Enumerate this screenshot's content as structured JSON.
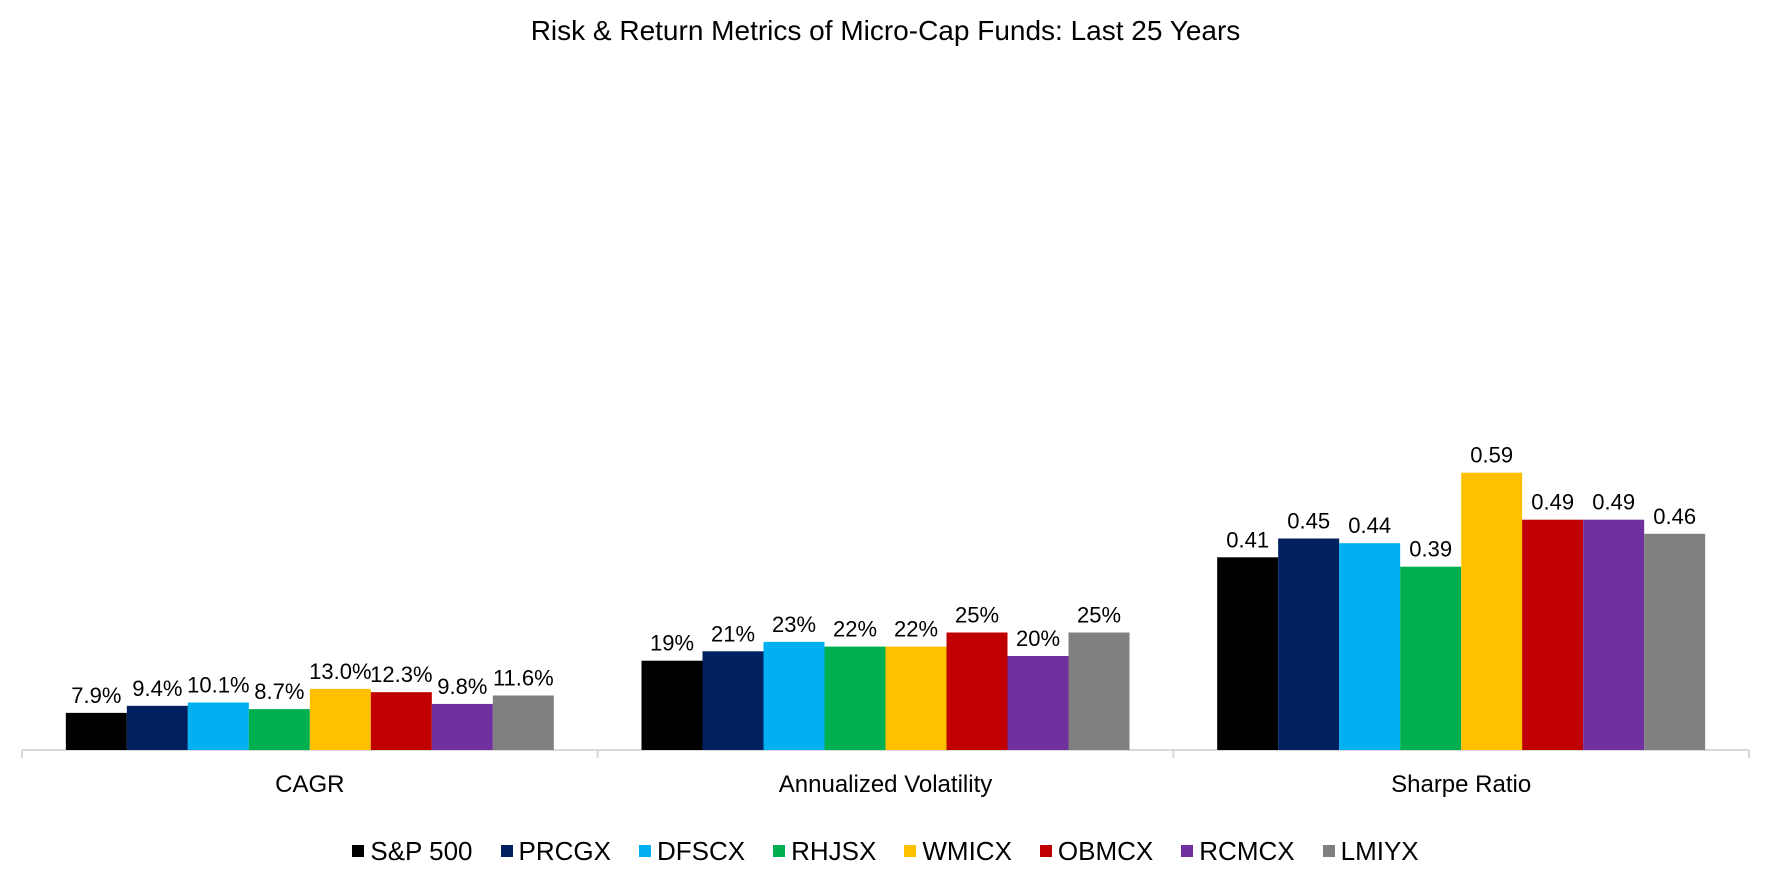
{
  "chart_data": {
    "type": "bar",
    "title": "Risk & Return Metrics of Micro-Cap Funds: Last 25 Years",
    "categories": [
      "CAGR",
      "Annualized Volatility",
      "Sharpe Ratio"
    ],
    "ylim": [
      0,
      0.8
    ],
    "grid": false,
    "legend_position": "bottom",
    "series": [
      {
        "name": "S&P 500",
        "color": "#000000",
        "values": [
          0.079,
          0.19,
          0.41
        ],
        "labels": [
          "7.9%",
          "19%",
          "0.41"
        ]
      },
      {
        "name": "PRCGX",
        "color": "#002060",
        "values": [
          0.094,
          0.21,
          0.45
        ],
        "labels": [
          "9.4%",
          "21%",
          "0.45"
        ]
      },
      {
        "name": "DFSCX",
        "color": "#00B0F0",
        "values": [
          0.101,
          0.23,
          0.44
        ],
        "labels": [
          "10.1%",
          "23%",
          "0.44"
        ]
      },
      {
        "name": "RHJSX",
        "color": "#00B050",
        "values": [
          0.087,
          0.22,
          0.39
        ],
        "labels": [
          "8.7%",
          "22%",
          "0.39"
        ]
      },
      {
        "name": "WMICX",
        "color": "#FFC000",
        "values": [
          0.13,
          0.22,
          0.59
        ],
        "labels": [
          "13.0%",
          "22%",
          "0.59"
        ]
      },
      {
        "name": "OBMCX",
        "color": "#C00000",
        "values": [
          0.123,
          0.25,
          0.49
        ],
        "labels": [
          "12.3%",
          "25%",
          "0.49"
        ]
      },
      {
        "name": "RCMCX",
        "color": "#7030A0",
        "values": [
          0.098,
          0.2,
          0.49
        ],
        "labels": [
          "9.8%",
          "20%",
          "0.49"
        ]
      },
      {
        "name": "LMIYX",
        "color": "#808080",
        "values": [
          0.116,
          0.25,
          0.46
        ],
        "labels": [
          "11.6%",
          "25%",
          "0.46"
        ]
      }
    ]
  }
}
